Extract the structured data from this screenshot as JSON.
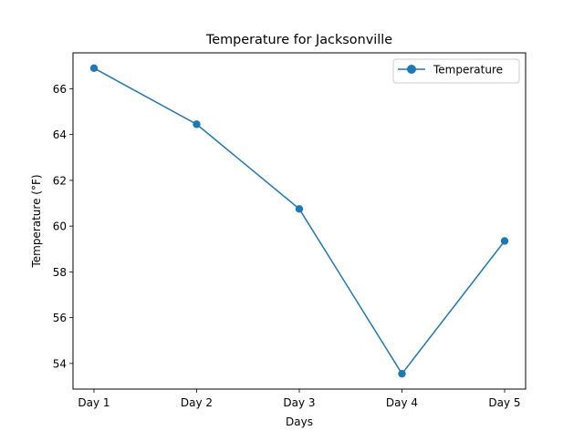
{
  "chart_data": {
    "type": "line",
    "title": "Temperature for Jacksonville",
    "xlabel": "Days",
    "ylabel": "Temperature (°F)",
    "categories": [
      "Day 1",
      "Day 2",
      "Day 3",
      "Day 4",
      "Day 5"
    ],
    "series": [
      {
        "name": "Temperature",
        "values": [
          66.9,
          64.45,
          60.75,
          53.55,
          59.35
        ],
        "color": "#1f77b4",
        "marker": "circle"
      }
    ],
    "ylim": [
      52.88,
      67.57
    ],
    "yticks": [
      54,
      56,
      58,
      60,
      62,
      64,
      66
    ],
    "grid": false,
    "legend": "top-right"
  }
}
